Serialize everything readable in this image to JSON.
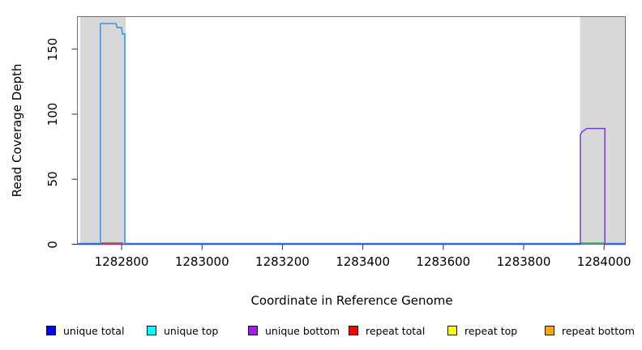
{
  "chart_data": {
    "type": "line",
    "title": "",
    "xlabel": "Coordinate in Reference Genome",
    "ylabel": "Read Coverage Depth",
    "xlim": [
      1282690,
      1284053
    ],
    "ylim": [
      0,
      175
    ],
    "x_ticks": [
      1282800,
      1283000,
      1283200,
      1283400,
      1283600,
      1283800,
      1284000
    ],
    "y_ticks": [
      0,
      50,
      100,
      150
    ],
    "grid": false,
    "legend_position": "bottom",
    "region_fill": "#d8d8d8",
    "box_color": "#6e6e6e",
    "tick_color": "#333333",
    "repeat_regions": [
      {
        "start": 1282697,
        "end": 1282810
      },
      {
        "start": 1283940,
        "end": 1284053
      }
    ],
    "series": [
      {
        "name": "repeat total",
        "color": "#ee2222",
        "points": [
          [
            1282751,
            0
          ],
          [
            1282751,
            1
          ],
          [
            1282802,
            1
          ],
          [
            1282802,
            0
          ]
        ]
      },
      {
        "name": "unique total",
        "color": "#1e90ff",
        "dy": -1,
        "points": [
          [
            1282690,
            0
          ],
          [
            1282747,
            0
          ],
          [
            1282747,
            169
          ],
          [
            1282786,
            169
          ],
          [
            1282789,
            166
          ],
          [
            1282800,
            166
          ],
          [
            1282802,
            161
          ],
          [
            1282808,
            161
          ],
          [
            1282808,
            0
          ],
          [
            1284053,
            0
          ]
        ]
      },
      {
        "name": "green segment",
        "color": "#44b244",
        "points": [
          [
            1283941,
            0
          ],
          [
            1283941,
            1
          ],
          [
            1284000,
            1
          ],
          [
            1284000,
            0
          ]
        ]
      },
      {
        "name": "unique bottom",
        "color": "#7b2be2",
        "points": [
          [
            1282690,
            0
          ],
          [
            1283941,
            0
          ],
          [
            1283941,
            84
          ],
          [
            1283944,
            86
          ],
          [
            1283948,
            87
          ],
          [
            1283953,
            88
          ],
          [
            1283957,
            89
          ],
          [
            1284002,
            89
          ],
          [
            1284002,
            0
          ],
          [
            1284053,
            0
          ]
        ]
      }
    ],
    "legend": [
      {
        "label": "unique total",
        "color": "#0000ff"
      },
      {
        "label": "unique top",
        "color": "#00ffff"
      },
      {
        "label": "unique bottom",
        "color": "#a020f0"
      },
      {
        "label": "repeat total",
        "color": "#ff0000"
      },
      {
        "label": "repeat top",
        "color": "#ffff00"
      },
      {
        "label": "repeat bottom",
        "color": "#ffa500"
      }
    ]
  }
}
